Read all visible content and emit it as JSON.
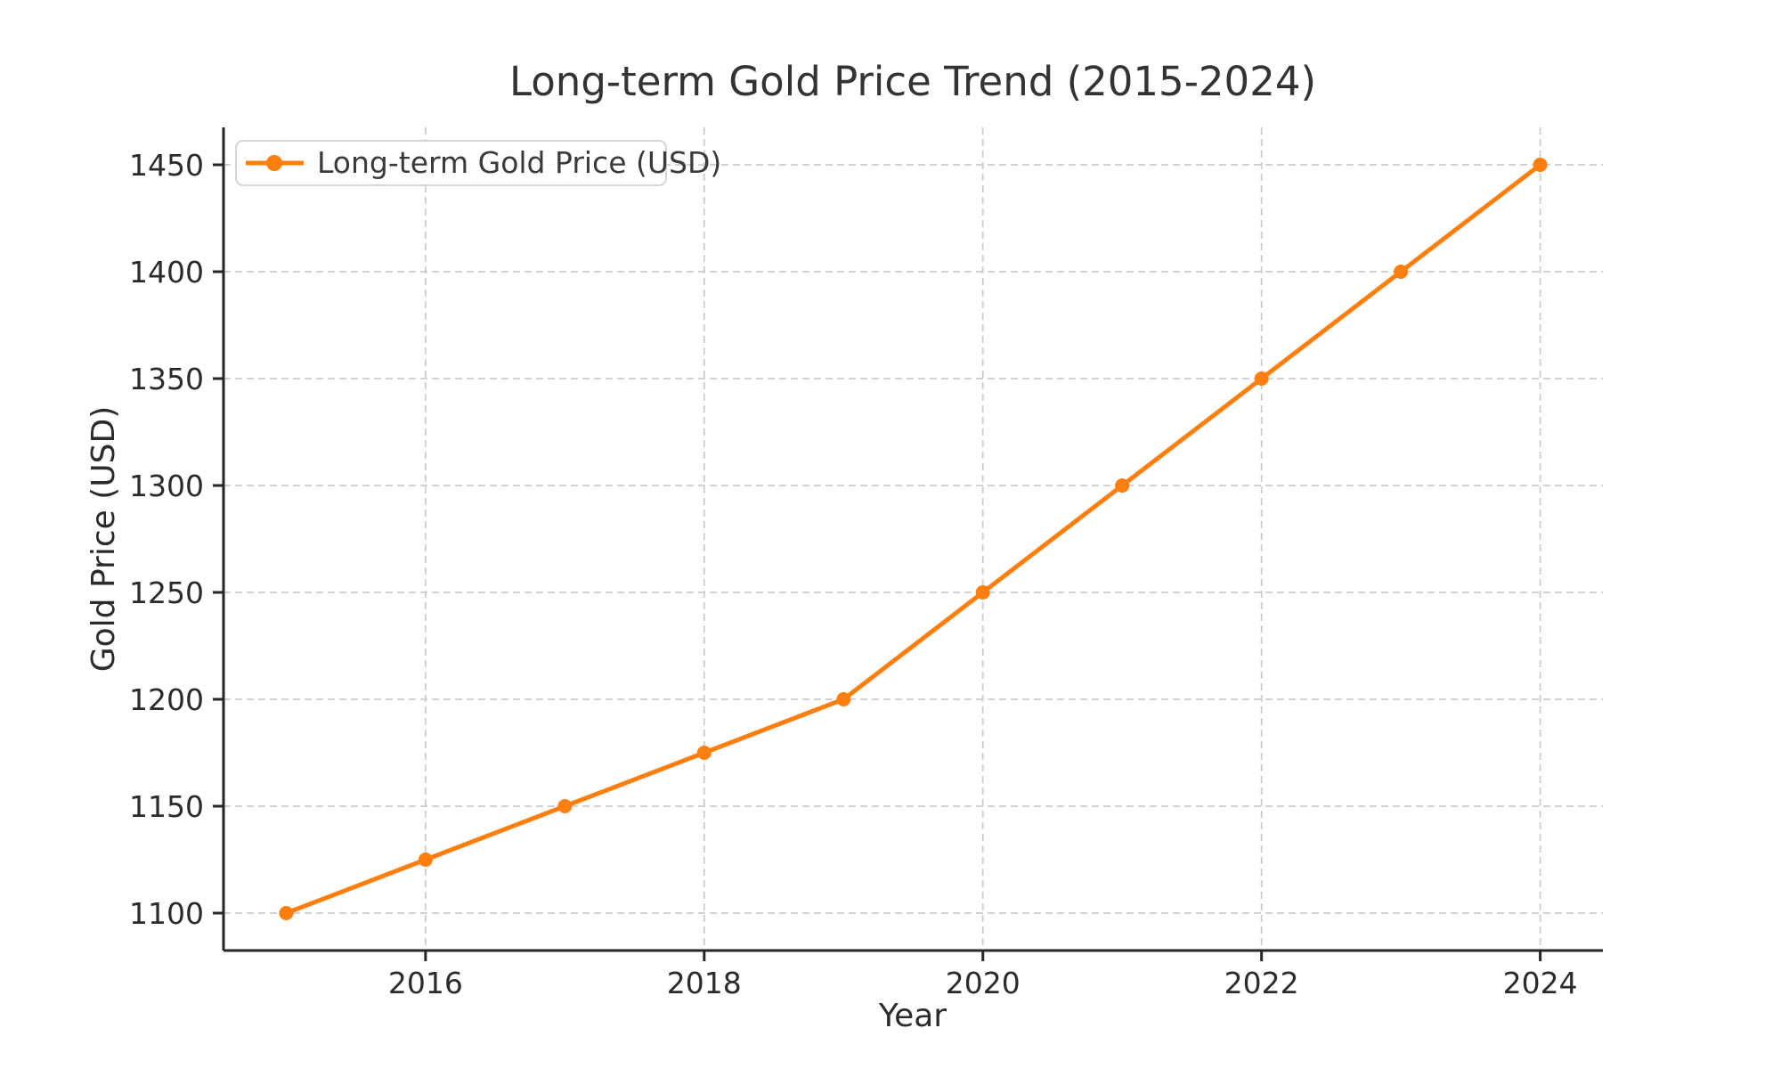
{
  "chart_data": {
    "type": "line",
    "title": "Long-term Gold Price Trend (2015-2024)",
    "xlabel": "Year",
    "ylabel": "Gold Price (USD)",
    "x": [
      2015,
      2016,
      2017,
      2018,
      2019,
      2020,
      2021,
      2022,
      2023,
      2024
    ],
    "series": [
      {
        "name": "Long-term Gold Price (USD)",
        "values": [
          1100,
          1125,
          1150,
          1175,
          1200,
          1250,
          1300,
          1350,
          1400,
          1450
        ],
        "color": "#ff7f0e",
        "marker": "circle"
      }
    ],
    "xlim": [
      2014.55,
      2024.45
    ],
    "ylim": [
      1082.5,
      1467.5
    ],
    "x_ticks": [
      2016,
      2018,
      2020,
      2022,
      2024
    ],
    "y_ticks": [
      1100,
      1150,
      1200,
      1250,
      1300,
      1350,
      1400,
      1450
    ],
    "grid": {
      "visible": true,
      "style": "dashed",
      "color": "#cccccc"
    },
    "legend": {
      "visible": true,
      "position": "upper left"
    },
    "style": {
      "axis_color": "#262626",
      "text_color": "#2b2b2b",
      "background": "#ffffff"
    }
  }
}
